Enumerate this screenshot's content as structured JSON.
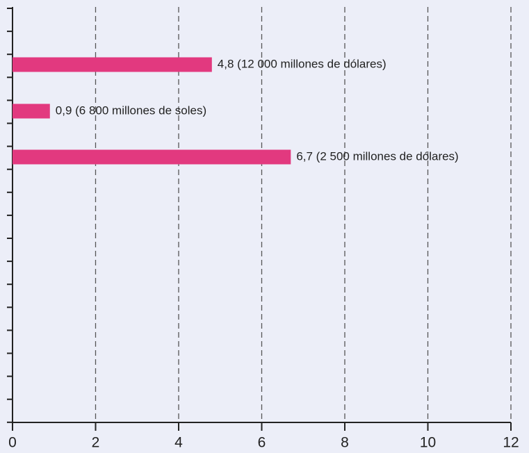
{
  "chart_data": {
    "type": "barh",
    "categories": [
      null,
      null,
      null
    ],
    "values": [
      4.8,
      0.9,
      6.7
    ],
    "value_labels": [
      "4,8 (12 000 millones de dólares)",
      "0,9 (6 800 millones de soles)",
      "6,7 (2 500 millones de dólares)"
    ],
    "color": "#e2397f",
    "xlim": [
      0,
      12
    ],
    "xticks": [
      0,
      2,
      4,
      6,
      8,
      10,
      12
    ],
    "grid": true
  }
}
